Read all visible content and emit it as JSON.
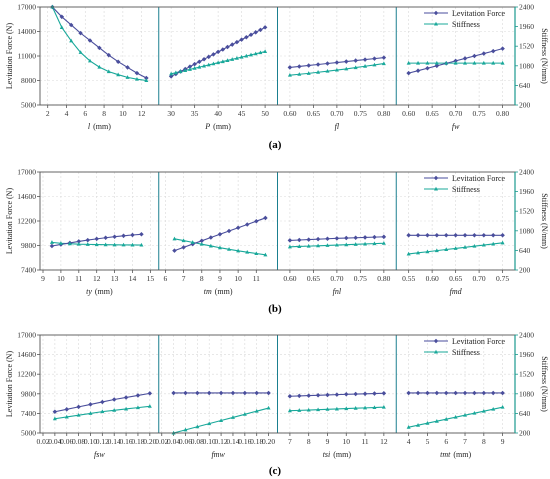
{
  "colors": {
    "force": "#4a4e9c",
    "stiff": "#19a89a",
    "axis_right": "#1a9a8e",
    "divider": "#1a7f8f",
    "grid": "#d9d9d9"
  },
  "legend": {
    "force": "Levitation Force",
    "stiff": "Stiffness"
  },
  "chart_data": [
    {
      "type": "line",
      "caption": "(a)",
      "ylabel_left": "Levitation Force (N)",
      "ylabel_right": "Stiffness (N/mm)",
      "yticks_left": [
        "5000",
        "8000",
        "11000",
        "14000",
        "17000"
      ],
      "yticks_right": [
        "200",
        "640",
        "1080",
        "1520",
        "1960",
        "2400"
      ],
      "ylim_left": [
        5000,
        17000
      ],
      "ylim_right": [
        200,
        2400
      ],
      "legend_position": "top-right",
      "panels": [
        {
          "xlabel": "l",
          "xunit": "(mm)",
          "xlim": [
            1.5,
            13.5
          ],
          "xticks": [
            {
              "v": 2,
              "t": "2"
            },
            {
              "v": 4,
              "t": "4"
            },
            {
              "v": 6,
              "t": "6"
            },
            {
              "v": 8,
              "t": "8"
            },
            {
              "v": 10,
              "t": "10"
            },
            {
              "v": 12,
              "t": "12"
            }
          ],
          "x": [
            2.5,
            3.5,
            4.5,
            5.5,
            6.5,
            7.5,
            8.5,
            9.5,
            10.5,
            11.5,
            12.5
          ],
          "force": [
            17000,
            15800,
            14800,
            13800,
            12900,
            12000,
            11100,
            10300,
            9600,
            8900,
            8300
          ],
          "stiff": [
            2400,
            1940,
            1640,
            1380,
            1190,
            1050,
            950,
            880,
            820,
            780,
            750
          ]
        },
        {
          "xlabel": "P",
          "xunit": "(mm)",
          "xlim": [
            28,
            52
          ],
          "xticks": [
            {
              "v": 30,
              "t": "30"
            },
            {
              "v": 35,
              "t": "35"
            },
            {
              "v": 40,
              "t": "40"
            },
            {
              "v": 45,
              "t": "45"
            },
            {
              "v": 50,
              "t": "50"
            }
          ],
          "x": [
            30,
            31,
            32,
            33,
            34,
            35,
            36,
            37,
            38,
            39,
            40,
            41,
            42,
            43,
            44,
            45,
            46,
            47,
            48,
            49,
            50
          ],
          "force": [
            8500,
            8800,
            9100,
            9400,
            9700,
            10000,
            10300,
            10600,
            10900,
            11200,
            11500,
            11800,
            12100,
            12400,
            12700,
            13000,
            13300,
            13600,
            13900,
            14200,
            14500
          ],
          "stiff": [
            900,
            925,
            950,
            975,
            1000,
            1025,
            1050,
            1075,
            1100,
            1125,
            1150,
            1175,
            1200,
            1225,
            1250,
            1275,
            1300,
            1325,
            1350,
            1375,
            1400
          ]
        },
        {
          "xlabel": "fl",
          "xunit": "",
          "xlim": [
            0.58,
            0.82
          ],
          "xticks": [
            {
              "v": 0.6,
              "t": "0.60"
            },
            {
              "v": 0.65,
              "t": "0.65"
            },
            {
              "v": 0.7,
              "t": "0.70"
            },
            {
              "v": 0.75,
              "t": "0.75"
            },
            {
              "v": 0.8,
              "t": "0.80"
            }
          ],
          "x": [
            0.6,
            0.62,
            0.64,
            0.66,
            0.68,
            0.7,
            0.72,
            0.74,
            0.76,
            0.78,
            0.8
          ],
          "force": [
            9600,
            9720,
            9840,
            9960,
            10080,
            10200,
            10320,
            10440,
            10560,
            10680,
            10800
          ],
          "stiff": [
            870,
            890,
            910,
            935,
            960,
            985,
            1010,
            1040,
            1070,
            1100,
            1130
          ]
        },
        {
          "xlabel": "fw",
          "xunit": "",
          "xlim": [
            0.58,
            0.82
          ],
          "xticks": [
            {
              "v": 0.6,
              "t": "0.60"
            },
            {
              "v": 0.65,
              "t": "0.65"
            },
            {
              "v": 0.7,
              "t": "0.70"
            },
            {
              "v": 0.75,
              "t": "0.75"
            },
            {
              "v": 0.8,
              "t": "0.80"
            }
          ],
          "x": [
            0.6,
            0.62,
            0.64,
            0.66,
            0.68,
            0.7,
            0.72,
            0.74,
            0.76,
            0.78,
            0.8
          ],
          "force": [
            8900,
            9200,
            9500,
            9800,
            10100,
            10400,
            10700,
            11000,
            11300,
            11600,
            11900
          ],
          "stiff": [
            1140,
            1140,
            1140,
            1140,
            1140,
            1140,
            1140,
            1140,
            1140,
            1140,
            1140
          ]
        }
      ]
    },
    {
      "type": "line",
      "caption": "(b)",
      "ylabel_left": "Levitation Force (N)",
      "ylabel_right": "Stiffness (N/mm)",
      "yticks_left": [
        "7400",
        "9800",
        "12200",
        "14600",
        "17000"
      ],
      "yticks_right": [
        "200",
        "640",
        "1080",
        "1520",
        "1960",
        "2400"
      ],
      "ylim_left": [
        7400,
        17000
      ],
      "ylim_right": [
        200,
        2400
      ],
      "legend_position": "top-right",
      "panels": [
        {
          "xlabel": "ty",
          "xunit": "(mm)",
          "xlim": [
            9,
            15.3
          ],
          "xticks": [
            {
              "v": 9,
              "t": "9"
            },
            {
              "v": 10,
              "t": "10"
            },
            {
              "v": 11,
              "t": "11"
            },
            {
              "v": 12,
              "t": "12"
            },
            {
              "v": 13,
              "t": "13"
            },
            {
              "v": 14,
              "t": "14"
            },
            {
              "v": 15,
              "t": "15"
            }
          ],
          "x": [
            9.5,
            10,
            10.5,
            11,
            11.5,
            12,
            12.5,
            13,
            13.5,
            14,
            14.5
          ],
          "force": [
            9750,
            9900,
            10050,
            10200,
            10330,
            10450,
            10560,
            10660,
            10750,
            10830,
            10900
          ],
          "stiff": [
            820,
            800,
            790,
            780,
            775,
            770,
            768,
            765,
            763,
            762,
            760
          ]
        },
        {
          "xlabel": "tm",
          "xunit": "(mm)",
          "xlim": [
            5.8,
            12
          ],
          "xticks": [
            {
              "v": 6,
              "t": "6"
            },
            {
              "v": 7,
              "t": "7"
            },
            {
              "v": 8,
              "t": "8"
            },
            {
              "v": 9,
              "t": "9"
            },
            {
              "v": 10,
              "t": "10"
            },
            {
              "v": 11,
              "t": "11"
            }
          ],
          "x": [
            6.5,
            7,
            7.5,
            8,
            8.5,
            9,
            9.5,
            10,
            10.5,
            11,
            11.5
          ],
          "force": [
            9300,
            9620,
            9940,
            10260,
            10580,
            10900,
            11220,
            11540,
            11860,
            12180,
            12500
          ],
          "stiff": [
            900,
            860,
            820,
            780,
            740,
            700,
            665,
            630,
            600,
            570,
            540
          ]
        },
        {
          "xlabel": "fnl",
          "xunit": "",
          "xlim": [
            0.58,
            0.82
          ],
          "xticks": [
            {
              "v": 0.6,
              "t": "0.60"
            },
            {
              "v": 0.65,
              "t": "0.65"
            },
            {
              "v": 0.7,
              "t": "0.70"
            },
            {
              "v": 0.75,
              "t": "0.75"
            },
            {
              "v": 0.8,
              "t": "0.80"
            }
          ],
          "x": [
            0.6,
            0.62,
            0.64,
            0.66,
            0.68,
            0.7,
            0.72,
            0.74,
            0.76,
            0.78,
            0.8
          ],
          "force": [
            10300,
            10340,
            10380,
            10420,
            10460,
            10500,
            10530,
            10560,
            10590,
            10620,
            10650
          ],
          "stiff": [
            720,
            728,
            736,
            744,
            752,
            760,
            768,
            776,
            784,
            792,
            800
          ]
        },
        {
          "xlabel": "fmd",
          "xunit": "",
          "xlim": [
            0.53,
            0.77
          ],
          "xticks": [
            {
              "v": 0.55,
              "t": "0.55"
            },
            {
              "v": 0.6,
              "t": "0.60"
            },
            {
              "v": 0.65,
              "t": "0.65"
            },
            {
              "v": 0.7,
              "t": "0.70"
            },
            {
              "v": 0.75,
              "t": "0.75"
            }
          ],
          "x": [
            0.55,
            0.57,
            0.59,
            0.61,
            0.63,
            0.65,
            0.67,
            0.69,
            0.71,
            0.73,
            0.75
          ],
          "force": [
            10800,
            10800,
            10800,
            10800,
            10800,
            10800,
            10800,
            10800,
            10800,
            10800,
            10800
          ],
          "stiff": [
            560,
            585,
            610,
            635,
            660,
            685,
            710,
            735,
            760,
            785,
            810
          ]
        }
      ]
    },
    {
      "type": "line",
      "caption": "(c)",
      "ylabel_left": "Levitation Force (N)",
      "ylabel_right": "Stiffness (N/mm)",
      "yticks_left": [
        "5000",
        "7400",
        "9800",
        "12200",
        "14600",
        "17000"
      ],
      "yticks_right": [
        "200",
        "640",
        "1080",
        "1520",
        "1960",
        "2400"
      ],
      "ylim_left": [
        5000,
        17000
      ],
      "ylim_right": [
        200,
        2400
      ],
      "legend_position": "top-right",
      "panels": [
        {
          "xlabel": "fsw",
          "xunit": "",
          "xlim": [
            0.02,
            0.21
          ],
          "xticks": [
            {
              "v": 0.02,
              "t": "0.02"
            },
            {
              "v": 0.04,
              "t": "0.04"
            },
            {
              "v": 0.06,
              "t": "0.06"
            },
            {
              "v": 0.08,
              "t": "0.08"
            },
            {
              "v": 0.1,
              "t": "0.10"
            },
            {
              "v": 0.12,
              "t": "0.12"
            },
            {
              "v": 0.14,
              "t": "0.14"
            },
            {
              "v": 0.16,
              "t": "0.16"
            },
            {
              "v": 0.18,
              "t": "0.18"
            },
            {
              "v": 0.2,
              "t": "0.20"
            }
          ],
          "x": [
            0.04,
            0.06,
            0.08,
            0.1,
            0.12,
            0.14,
            0.16,
            0.18,
            0.2
          ],
          "force": [
            7600,
            7900,
            8200,
            8500,
            8800,
            9100,
            9350,
            9600,
            9850
          ],
          "stiff": [
            520,
            560,
            600,
            640,
            680,
            710,
            740,
            770,
            800
          ]
        },
        {
          "xlabel": "fmw",
          "xunit": "",
          "xlim": [
            0.02,
            0.21
          ],
          "xticks": [
            {
              "v": 0.02,
              "t": "0.02"
            },
            {
              "v": 0.04,
              "t": "0.04"
            },
            {
              "v": 0.06,
              "t": "0.06"
            },
            {
              "v": 0.08,
              "t": "0.08"
            },
            {
              "v": 0.1,
              "t": "0.10"
            },
            {
              "v": 0.12,
              "t": "0.12"
            },
            {
              "v": 0.14,
              "t": "0.14"
            },
            {
              "v": 0.16,
              "t": "0.16"
            },
            {
              "v": 0.18,
              "t": "0.18"
            },
            {
              "v": 0.2,
              "t": "0.20"
            }
          ],
          "x": [
            0.04,
            0.06,
            0.08,
            0.1,
            0.12,
            0.14,
            0.16,
            0.18,
            0.2
          ],
          "force": [
            9900,
            9900,
            9900,
            9900,
            9900,
            9900,
            9900,
            9900,
            9900
          ],
          "stiff": [
            200,
            270,
            340,
            410,
            480,
            550,
            620,
            690,
            760
          ]
        },
        {
          "xlabel": "tsi",
          "xunit": "(mm)",
          "xlim": [
            6.5,
            12.5
          ],
          "xticks": [
            {
              "v": 7,
              "t": "7"
            },
            {
              "v": 8,
              "t": "8"
            },
            {
              "v": 9,
              "t": "9"
            },
            {
              "v": 10,
              "t": "10"
            },
            {
              "v": 11,
              "t": "11"
            },
            {
              "v": 12,
              "t": "12"
            }
          ],
          "x": [
            7,
            7.5,
            8,
            8.5,
            9,
            9.5,
            10,
            10.5,
            11,
            11.5,
            12
          ],
          "force": [
            9500,
            9540,
            9580,
            9620,
            9660,
            9700,
            9740,
            9770,
            9800,
            9830,
            9860
          ],
          "stiff": [
            700,
            708,
            716,
            724,
            732,
            740,
            748,
            756,
            764,
            772,
            780
          ]
        },
        {
          "xlabel": "tmt",
          "xunit": "(mm)",
          "xlim": [
            3.5,
            9.5
          ],
          "xticks": [
            {
              "v": 4,
              "t": "4"
            },
            {
              "v": 5,
              "t": "5"
            },
            {
              "v": 6,
              "t": "6"
            },
            {
              "v": 7,
              "t": "7"
            },
            {
              "v": 8,
              "t": "8"
            },
            {
              "v": 9,
              "t": "9"
            }
          ],
          "x": [
            4,
            4.5,
            5,
            5.5,
            6,
            6.5,
            7,
            7.5,
            8,
            8.5,
            9
          ],
          "force": [
            9900,
            9900,
            9900,
            9900,
            9900,
            9900,
            9900,
            9900,
            9900,
            9900,
            9900
          ],
          "stiff": [
            330,
            375,
            420,
            465,
            510,
            555,
            600,
            645,
            690,
            735,
            780
          ]
        }
      ]
    }
  ]
}
